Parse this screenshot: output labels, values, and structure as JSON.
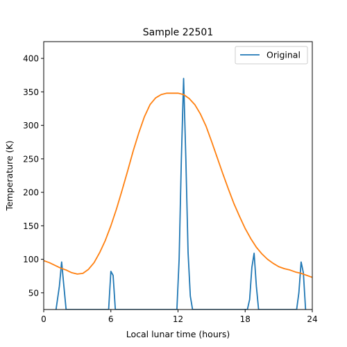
{
  "chart_data": {
    "type": "line",
    "title": "Sample 22501",
    "xlabel": "Local lunar time (hours)",
    "ylabel": "Temperature (K)",
    "xlim": [
      0,
      24
    ],
    "ylim": [
      25,
      425
    ],
    "xticks": [
      0,
      6,
      12,
      18,
      24
    ],
    "yticks": [
      50,
      100,
      150,
      200,
      250,
      300,
      350,
      400
    ],
    "grid": false,
    "legend": {
      "placement": "top-right",
      "entries": [
        "Original"
      ]
    },
    "series": [
      {
        "name": "Original",
        "color": "#1f77b4",
        "x": [
          1.1,
          1.4,
          1.6,
          1.8,
          2.0,
          5.8,
          6.0,
          6.2,
          6.4,
          11.9,
          12.1,
          12.3,
          12.5,
          12.7,
          12.9,
          13.1,
          13.3,
          18.2,
          18.4,
          18.6,
          18.8,
          19.0,
          19.2,
          22.6,
          22.8,
          23.0,
          23.2,
          23.4
        ],
        "y": [
          25,
          60,
          96,
          60,
          25,
          25,
          82,
          76,
          25,
          25,
          100,
          250,
          370,
          250,
          110,
          45,
          25,
          25,
          40,
          88,
          109,
          60,
          25,
          25,
          50,
          96,
          80,
          25
        ]
      },
      {
        "color": "#ff7f0e",
        "x": [
          0,
          0.5,
          1,
          1.5,
          2,
          2.5,
          3,
          3.5,
          4,
          4.5,
          5,
          5.5,
          6,
          6.5,
          7,
          7.5,
          8,
          8.5,
          9,
          9.5,
          10,
          10.5,
          11,
          11.5,
          12,
          12.5,
          13,
          13.5,
          14,
          14.5,
          15,
          15.5,
          16,
          16.5,
          17,
          17.5,
          18,
          18.5,
          19,
          19.5,
          20,
          20.5,
          21,
          21.5,
          22,
          22.5,
          23,
          23.5,
          24
        ],
        "y": [
          98,
          95,
          91,
          87,
          84,
          80,
          78,
          79,
          85,
          95,
          110,
          128,
          150,
          175,
          203,
          232,
          262,
          289,
          313,
          331,
          341,
          346,
          348,
          348,
          348,
          346,
          340,
          331,
          317,
          299,
          276,
          252,
          228,
          205,
          183,
          164,
          146,
          131,
          118,
          108,
          100,
          94,
          89,
          86,
          84,
          81,
          79,
          76,
          73
        ]
      }
    ]
  }
}
